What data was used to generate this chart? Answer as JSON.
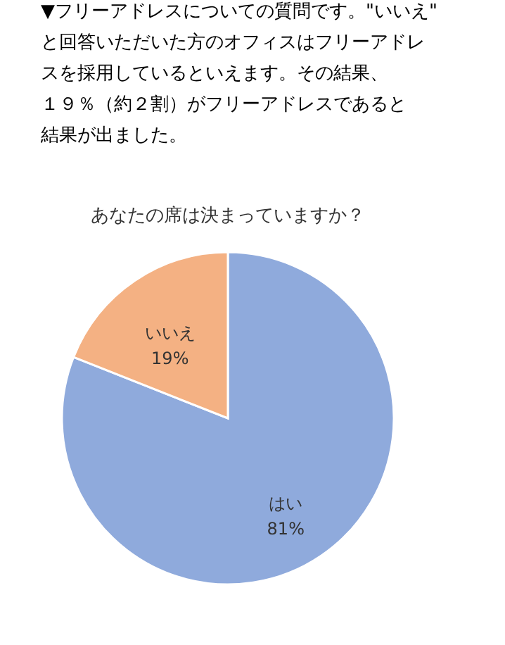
{
  "chart_data": {
    "type": "pie",
    "title": "あなたの席は決まっていますか？",
    "annotations": [
      "▼フリーアドレスについての質問です。\"いいえ\"と回答いただいた方のオフィスはフリーアドレスを採用しているといえます。その結果、１９％（約２割）がフリーアドレスであると結果が出ました。"
    ],
    "categories": [
      "はい",
      "いいえ"
    ],
    "values": [
      81,
      19
    ],
    "colors": [
      "#8faadc",
      "#f4b183"
    ],
    "value_labels": [
      "81%",
      "19%"
    ],
    "legend": false
  }
}
